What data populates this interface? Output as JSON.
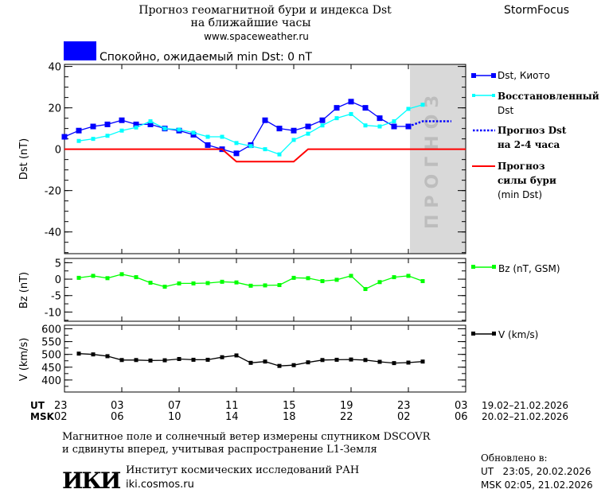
{
  "header": {
    "title_line1": "Прогноз геомагнитной бури и индекса Dst",
    "title_line2": "на ближайшие часы",
    "url": "www.spaceweather.ru",
    "brand": "StormFocus",
    "status_text": "Спокойно, ожидаемый min Dst: 0 nT",
    "status_color": "#0000ff"
  },
  "x_axis": {
    "ut_label": "UT",
    "msk_label": "MSK",
    "ut_ticks": [
      "23",
      "03",
      "07",
      "11",
      "15",
      "19",
      "23",
      "03"
    ],
    "msk_ticks": [
      "02",
      "06",
      "10",
      "14",
      "18",
      "22",
      "02",
      "06"
    ],
    "ut_range": "19.02–21.02.2026",
    "msk_range": "20.02–21.02.2026"
  },
  "forecast_zone_label": "ПРОГНОЗ",
  "legend": {
    "dst_kyoto": "Dst, Киото",
    "restored_1": "Восстановленный",
    "restored_2": "Dst",
    "forecast_1": "Прогноз Dst",
    "forecast_2": "на 2-4 часа",
    "storm_1": "Прогноз",
    "storm_2": "силы бури",
    "storm_3": "(min Dst)",
    "bz": "Bz (nT, GSM)",
    "v": "V (km/s)"
  },
  "footer": {
    "note_1": "Магнитное поле и солнечный ветер измерены спутником DSCOVR",
    "note_2": "и сдвинуты вперед, учитывая распространение L1-Земля",
    "logo": "ИКИ",
    "institute": "Институт космических исследований РАН",
    "institute_url": "iki.cosmos.ru",
    "updated_label": "Обновлено в:",
    "updated_ut": "UT   23:05, 20.02.2026",
    "updated_msk": "MSK 02:05, 21.02.2026"
  },
  "chart_data": [
    {
      "type": "line",
      "ylabel": "Dst (nT)",
      "ylim": [
        -50.5,
        41
      ],
      "yticks": [
        "40",
        "20",
        "0",
        "-20",
        "-40"
      ],
      "ytick_values": [
        40,
        20,
        0,
        -20,
        -40
      ],
      "x_hours_range": [
        0,
        28
      ],
      "forecast_zone_hours": [
        24,
        28
      ],
      "series": [
        {
          "name": "Dst, Киото",
          "color": "#0000ff",
          "x": [
            0,
            1,
            2,
            3,
            4,
            5,
            6,
            7,
            8,
            9,
            10,
            11,
            12,
            13,
            14,
            15,
            16,
            17,
            18,
            19,
            20,
            21,
            22,
            23,
            24
          ],
          "values": [
            6,
            9,
            11,
            12,
            14,
            12,
            12,
            10,
            9,
            7,
            2,
            0,
            -2,
            2,
            14,
            10,
            9,
            11,
            14,
            20,
            23,
            20,
            15,
            11,
            11
          ]
        },
        {
          "name": "Восстановленный Dst",
          "color": "#00ffff",
          "x": [
            1,
            2,
            3,
            4,
            5,
            6,
            7,
            8,
            9,
            10,
            11,
            12,
            13,
            14,
            15,
            16,
            17,
            18,
            19,
            20,
            21,
            22,
            23,
            24,
            25
          ],
          "values": [
            4,
            5,
            6.5,
            9,
            10.5,
            13.5,
            10,
            9.5,
            8,
            6,
            6,
            3,
            1.5,
            0,
            -2.5,
            4.5,
            7.5,
            11.5,
            15,
            17,
            11.5,
            11,
            13.5,
            19.5,
            21.5
          ]
        },
        {
          "name": "Прогноз Dst на 2-4 часа",
          "color": "#0000ff",
          "style": "dotted",
          "x": [
            24,
            25,
            26,
            27
          ],
          "values": [
            11,
            13.5,
            13.5,
            13.5
          ]
        },
        {
          "name": "Прогноз силы бури (min Dst)",
          "color": "#ff0000",
          "x": [
            0,
            11,
            12,
            16,
            17,
            28
          ],
          "values": [
            0,
            0,
            -6,
            -6,
            0,
            0
          ]
        }
      ]
    },
    {
      "type": "line",
      "ylabel": "Bz (nT)",
      "ylim": [
        -12.8,
        6.3
      ],
      "yticks": [
        "5",
        "0",
        "-5",
        "-10"
      ],
      "ytick_values": [
        5,
        0,
        -5,
        -10
      ],
      "series": [
        {
          "name": "Bz (nT, GSM)",
          "color": "#00ff00",
          "x": [
            1,
            2,
            3,
            4,
            5,
            6,
            7,
            8,
            9,
            10,
            11,
            12,
            13,
            14,
            15,
            16,
            17,
            18,
            19,
            20,
            21,
            22,
            23,
            24,
            25
          ],
          "values": [
            0.4,
            1.0,
            0.3,
            1.5,
            0.6,
            -1.1,
            -2.3,
            -1.3,
            -1.3,
            -1.2,
            -0.8,
            -1.0,
            -2.0,
            -1.9,
            -1.8,
            0.4,
            0.3,
            -0.6,
            -0.2,
            1.0,
            -3.0,
            -0.9,
            0.6,
            1.0,
            -0.6
          ]
        }
      ]
    },
    {
      "type": "line",
      "ylabel": "V (km/s)",
      "ylim": [
        353,
        614
      ],
      "yticks": [
        "600",
        "550",
        "500",
        "450",
        "400"
      ],
      "ytick_values": [
        600,
        550,
        500,
        450,
        400
      ],
      "series": [
        {
          "name": "V (km/s)",
          "color": "#000000",
          "x": [
            1,
            2,
            3,
            4,
            5,
            6,
            7,
            8,
            9,
            10,
            11,
            12,
            13,
            14,
            15,
            16,
            17,
            18,
            19,
            20,
            21,
            22,
            23,
            24,
            25
          ],
          "values": [
            503,
            500,
            493,
            478,
            478,
            476,
            477,
            482,
            479,
            479,
            489,
            496,
            467,
            472,
            455,
            458,
            469,
            478,
            479,
            480,
            478,
            471,
            466,
            468,
            472
          ]
        }
      ]
    }
  ]
}
